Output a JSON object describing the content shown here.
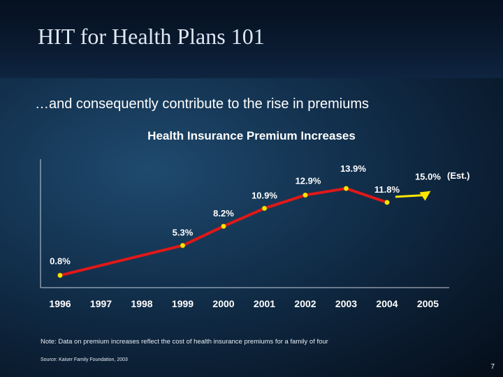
{
  "slide": {
    "title": "HIT for Health Plans 101",
    "subtitle": "…and consequently contribute to the rise in premiums",
    "note": "Note: Data on premium increases reflect the cost of health insurance premiums for a family of four",
    "source": "Source: Kaiser Family Foundation, 2003",
    "page_number": "7"
  },
  "chart_data": {
    "type": "line",
    "title": "Health Insurance Premium Increases",
    "xlabel": "",
    "ylabel": "",
    "categories": [
      "1996",
      "1997",
      "1998",
      "1999",
      "2000",
      "2001",
      "2002",
      "2003",
      "2004",
      "2005"
    ],
    "series": [
      {
        "values": [
          0.8,
          null,
          null,
          5.3,
          8.2,
          10.9,
          12.9,
          13.9,
          11.8,
          null
        ],
        "labels": [
          "0.8%",
          null,
          null,
          "5.3%",
          "8.2%",
          "10.9%",
          "12.9%",
          "13.9%",
          "11.8%",
          null
        ],
        "color": "#e01818"
      }
    ],
    "estimate": {
      "year": "2005",
      "value": 15.0,
      "label": "15.0%",
      "note": "(Est.)",
      "arrow_color": "#ffe600"
    },
    "ylim": [
      0,
      16
    ],
    "grid": false,
    "point_color": "#ffe600",
    "axis_color": "#c8d0da"
  }
}
